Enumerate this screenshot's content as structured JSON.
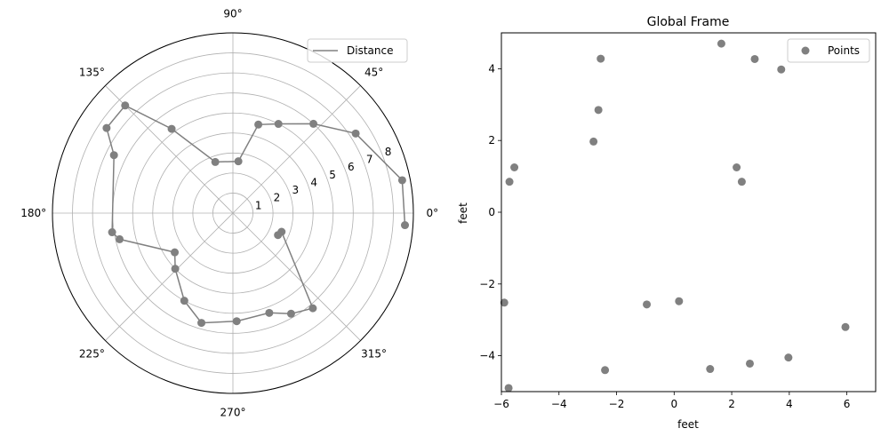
{
  "chart_data": [
    {
      "type": "line",
      "projection": "polar",
      "angle_unit": "degrees",
      "theta_ticks": [
        "0°",
        "45°",
        "90°",
        "135°",
        "180°",
        "225°",
        "270°",
        "315°"
      ],
      "r_ticks": [
        "1",
        "2",
        "3",
        "4",
        "5",
        "6",
        "7",
        "8"
      ],
      "rlim": [
        0,
        9
      ],
      "grid": true,
      "legend": {
        "position": "upper-right",
        "entries": [
          "Distance"
        ]
      },
      "series": [
        {
          "name": "Distance",
          "color": "#808080",
          "marker": "circle",
          "points": [
            {
              "theta": -4,
              "r": 8.6
            },
            {
              "theta": 11,
              "r": 8.6
            },
            {
              "theta": 33,
              "r": 7.3
            },
            {
              "theta": 48,
              "r": 6.0
            },
            {
              "theta": 63,
              "r": 5.0
            },
            {
              "theta": 74,
              "r": 4.6
            },
            {
              "theta": 84,
              "r": 2.6
            },
            {
              "theta": 109,
              "r": 2.7
            },
            {
              "theta": 126,
              "r": 5.2
            },
            {
              "theta": 135,
              "r": 7.6
            },
            {
              "theta": 146,
              "r": 7.6
            },
            {
              "theta": 154,
              "r": 6.6
            },
            {
              "theta": 189,
              "r": 6.1
            },
            {
              "theta": 193,
              "r": 5.8
            },
            {
              "theta": 214,
              "r": 3.5
            },
            {
              "theta": 224,
              "r": 4.0
            },
            {
              "theta": 241,
              "r": 5.0
            },
            {
              "theta": 254,
              "r": 5.7
            },
            {
              "theta": 272,
              "r": 5.4
            },
            {
              "theta": 290,
              "r": 5.3
            },
            {
              "theta": 300,
              "r": 5.8
            },
            {
              "theta": 310,
              "r": 6.2
            },
            {
              "theta": 339,
              "r": 2.6
            },
            {
              "theta": 334,
              "r": 2.5
            }
          ]
        }
      ]
    },
    {
      "type": "scatter",
      "title": "Global Frame",
      "xlabel": "feet",
      "ylabel": "feet",
      "xlim": [
        -6,
        7
      ],
      "ylim": [
        -5,
        5
      ],
      "x_ticks": [
        -6,
        -4,
        -2,
        0,
        2,
        4,
        6
      ],
      "y_ticks": [
        -4,
        -2,
        0,
        2,
        4
      ],
      "x_tick_labels": [
        "−6",
        "−4",
        "−2",
        "0",
        "2",
        "4",
        "6"
      ],
      "y_tick_labels": [
        "−4",
        "−2",
        "0",
        "2",
        "4"
      ],
      "grid": false,
      "legend": {
        "position": "upper-right",
        "entries": [
          "Points"
        ]
      },
      "series": [
        {
          "name": "Points",
          "color": "#808080",
          "marker": "circle",
          "x": [
            1.64,
            2.8,
            3.72,
            -2.55,
            -2.63,
            -2.8,
            -5.55,
            -5.72,
            2.17,
            2.35,
            -5.9,
            -0.95,
            0.17,
            -5.75,
            -2.4,
            1.25,
            2.63,
            3.97,
            5.95
          ],
          "y": [
            4.7,
            4.27,
            3.98,
            4.28,
            2.85,
            1.97,
            1.25,
            0.85,
            1.25,
            0.85,
            -2.52,
            -2.57,
            -2.48,
            -4.9,
            -4.4,
            -4.37,
            -4.22,
            -4.05,
            -3.2
          ]
        }
      ]
    }
  ]
}
